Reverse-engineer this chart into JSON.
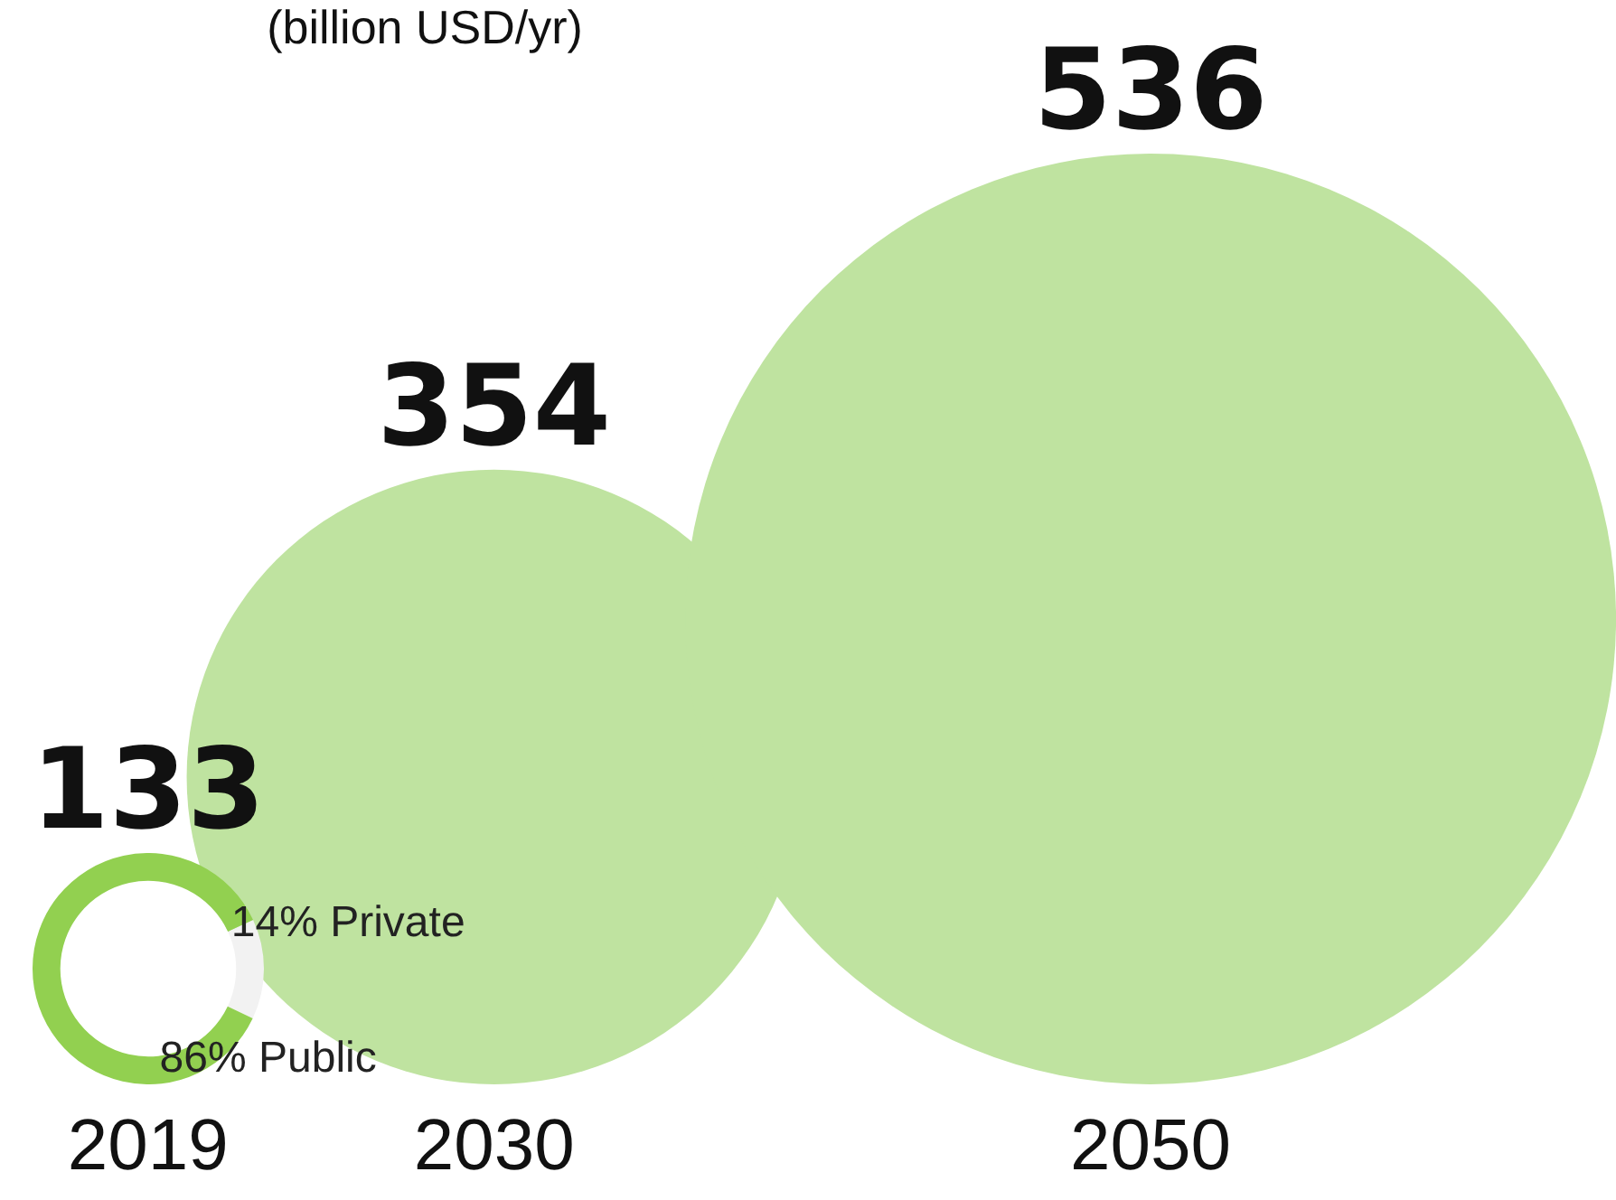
{
  "chart_data": [
    {
      "type": "other",
      "title": "(billion USD/yr)",
      "categories": [
        "2019",
        "2030",
        "2050"
      ],
      "values": [
        133,
        354,
        536
      ],
      "color": "#bfe3a0",
      "data_labels": true
    },
    {
      "type": "donut",
      "categories": [
        "14% Private",
        "86% Public"
      ],
      "values": [
        14,
        86
      ],
      "colors": [
        "#f2f2f2",
        "#92d050"
      ]
    }
  ]
}
